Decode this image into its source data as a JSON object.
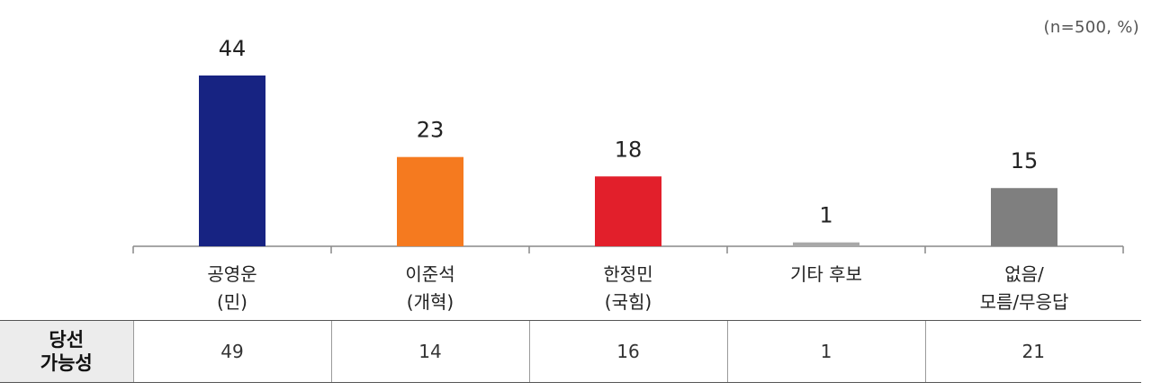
{
  "note": "(n=500, %)",
  "colors": {
    "axis": "#888888",
    "bar_label": "#222222"
  },
  "chart_data": {
    "type": "bar",
    "categories": [
      "공영운\n(민)",
      "이준석\n(개혁)",
      "한정민\n(국힘)",
      "기타 후보",
      "없음/\n모름/무응답"
    ],
    "values": [
      44,
      23,
      18,
      1,
      15
    ],
    "colors": [
      "#172382",
      "#f57a1f",
      "#e21f2b",
      "#a8a8a8",
      "#7f7f7f"
    ],
    "ylim": [
      0,
      44
    ],
    "grid": false,
    "legend": "none"
  },
  "table": {
    "row_label": "당선\n가능성",
    "values": [
      "49",
      "14",
      "16",
      "1",
      "21"
    ]
  }
}
